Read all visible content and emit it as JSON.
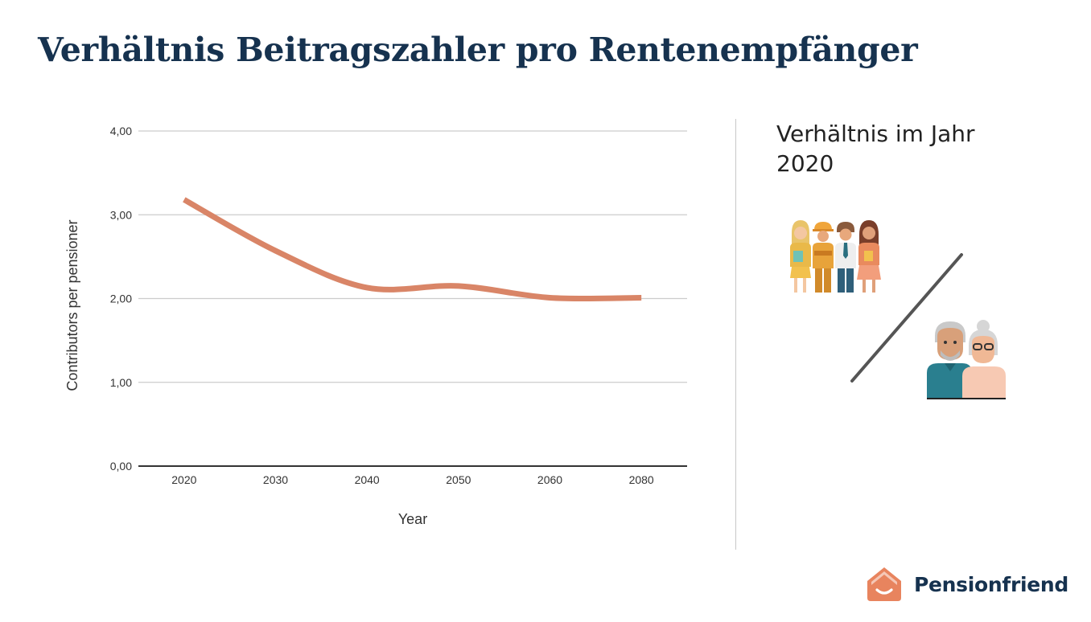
{
  "page": {
    "title": "Verhältnis Beitragszahler pro Rentenempfänger"
  },
  "chart_data": {
    "type": "line",
    "title": "",
    "xlabel": "Year",
    "ylabel": "Contributors per pensioner",
    "categories": [
      "2020",
      "2030",
      "2040",
      "2050",
      "2060",
      "2080"
    ],
    "yticks": [
      "0,00",
      "1,00",
      "2,00",
      "3,00",
      "4,00"
    ],
    "ylim": [
      0,
      4
    ],
    "grid": true,
    "legend": "none",
    "series": [
      {
        "name": "Contributors per pensioner",
        "values": [
          3.18,
          2.57,
          2.13,
          2.15,
          2.01,
          2.01
        ],
        "color": "#d98567"
      }
    ]
  },
  "side_panel": {
    "heading": "Verhältnis im Jahr 2020",
    "contributors_icon": "workers-group-icon",
    "pensioners_icon": "elderly-couple-icon",
    "slash_color": "#555555"
  },
  "logo": {
    "text": "Pensionfriend",
    "icon": "house-smile-icon",
    "color": "#e8845e"
  }
}
